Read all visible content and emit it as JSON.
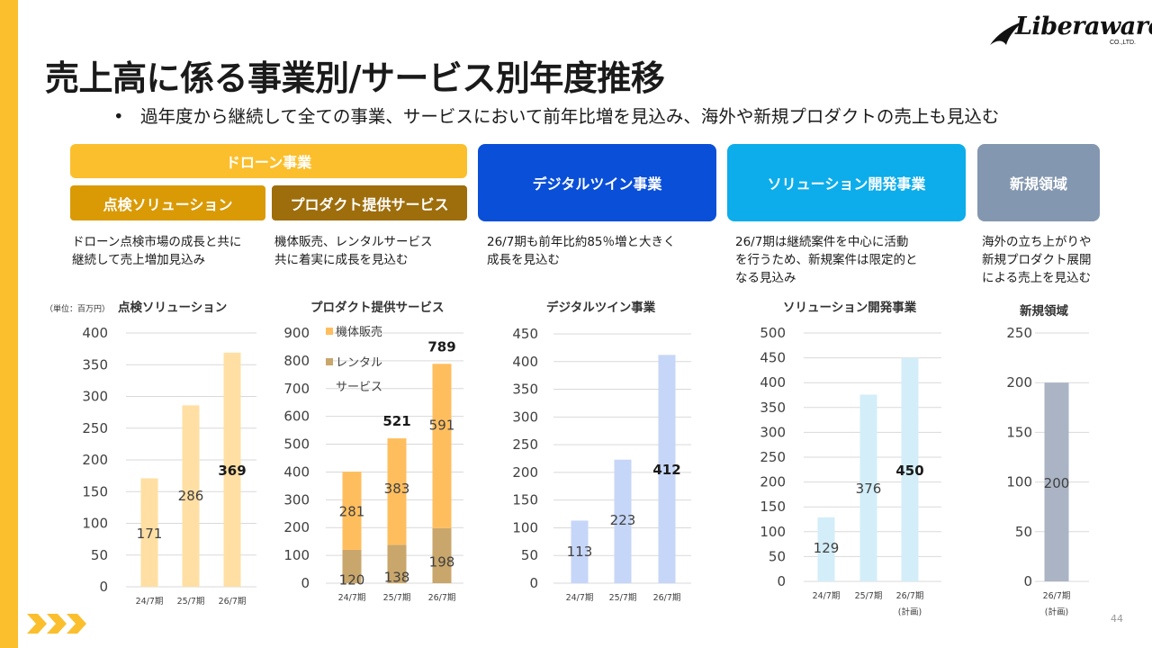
{
  "header": {
    "title": "売上高に係る事業別/サービス別年度推移",
    "bullet": "•",
    "subtitle": "過年度から継続して全ての事業、サービスにおいて前年比増を見込み、海外や新規プロダクトの売上も見込む",
    "logo_text": "Liberaware",
    "logo_sub": "CO.,LTD."
  },
  "segments": {
    "drone": "ドローン事業",
    "inspection": "点検ソリューション",
    "product": "プロダクト提供サービス",
    "digital_twin": "デジタルツイン事業",
    "solution": "ソリューション開発事業",
    "new": "新規領域"
  },
  "descriptions": {
    "inspection": [
      "ドローン点検市場の成長と共に",
      "継続して売上増加見込み"
    ],
    "product": [
      "機体販売、レンタルサービス",
      "共に着実に成長を見込む"
    ],
    "digital_twin": [
      "26/7期も前年比約85％増と大きく",
      "成長を見込む"
    ],
    "solution": [
      "26/7期は継続案件を中心に活動",
      "を行うため、新規案件は限定的と",
      "なる見込み"
    ],
    "new": [
      "海外の立ち上がりや",
      "新規プロダクト展開",
      "による売上を見込む"
    ]
  },
  "unit_label": "（単位：百万円）",
  "colors": {
    "accent": "#FBBF2D",
    "drone_box": "#FBBF2D",
    "inspection_box": "#D99A06",
    "product_box": "#9E6D0C",
    "digital_twin_box": "#0A4FD8",
    "solution_box": "#0CADEA",
    "new_box": "#8497B0",
    "inspection_bar": "#FFDFA3",
    "product_sales_bar": "#FFBE5E",
    "product_rental_bar": "#C9A66B",
    "digital_twin_bar": "#C6D6F8",
    "solution_bar": "#D3EEF9",
    "new_bar": "#AAB4C4"
  },
  "page_number": "44",
  "chart_data": [
    {
      "type": "bar",
      "title": "点検ソリューション",
      "categories": [
        "24/7期",
        "25/7期",
        "26/7期"
      ],
      "values": [
        171,
        286,
        369
      ],
      "ylim": [
        0,
        400
      ],
      "yticks": [
        0,
        50,
        100,
        150,
        200,
        250,
        300,
        350,
        400
      ],
      "bold_labels": [
        false,
        false,
        true
      ]
    },
    {
      "type": "bar",
      "stacked": true,
      "title": "プロダクト提供サービス",
      "categories": [
        "24/7期",
        "25/7期",
        "26/7期"
      ],
      "series": [
        {
          "name": "レンタルサービス",
          "values": [
            120,
            138,
            198
          ]
        },
        {
          "name": "機体販売",
          "values": [
            281,
            383,
            591
          ]
        }
      ],
      "legend": [
        "機体販売",
        "レンタル",
        "サービス"
      ],
      "totals": [
        "",
        "521",
        "789"
      ],
      "ylim": [
        0,
        900
      ],
      "yticks": [
        0,
        100,
        200,
        300,
        400,
        500,
        600,
        700,
        800,
        900
      ]
    },
    {
      "type": "bar",
      "title": "デジタルツイン事業",
      "categories": [
        "24/7期",
        "25/7期",
        "26/7期"
      ],
      "values": [
        113,
        223,
        412
      ],
      "ylim": [
        0,
        450
      ],
      "yticks": [
        0,
        50,
        100,
        150,
        200,
        250,
        300,
        350,
        400,
        450
      ],
      "bold_labels": [
        false,
        false,
        true
      ]
    },
    {
      "type": "bar",
      "title": "ソリューション開発事業",
      "categories": [
        "24/7期",
        "25/7期",
        "26/7期"
      ],
      "sub_labels": [
        "",
        "",
        "(計画)"
      ],
      "values": [
        129,
        376,
        450
      ],
      "ylim": [
        0,
        500
      ],
      "yticks": [
        0,
        50,
        100,
        150,
        200,
        250,
        300,
        350,
        400,
        450,
        500
      ],
      "bold_labels": [
        false,
        false,
        true
      ]
    },
    {
      "type": "bar",
      "title": "新規領域",
      "categories": [
        "26/7期"
      ],
      "sub_labels": [
        "(計画)"
      ],
      "values": [
        200
      ],
      "ylim": [
        0,
        250
      ],
      "yticks": [
        0,
        50,
        100,
        150,
        200,
        250
      ],
      "bold_labels": [
        false
      ]
    }
  ]
}
